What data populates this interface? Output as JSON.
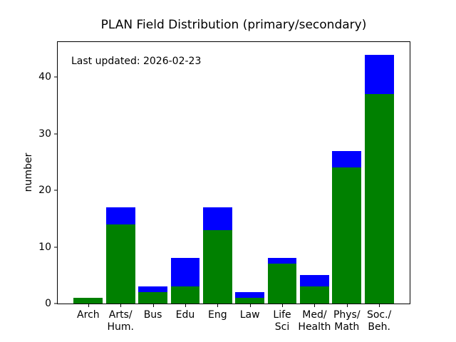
{
  "chart_data": {
    "type": "bar",
    "stacked": true,
    "title": "PLAN Field Distribution (primary/secondary)",
    "annotation": "Last updated: 2026-02-23",
    "xlabel": "",
    "ylabel": "number",
    "categories": [
      "Arch",
      "Arts/\nHum.",
      "Bus",
      "Edu",
      "Eng",
      "Law",
      "Life\nSci",
      "Med/\nHealth",
      "Phys/\nMath",
      "Soc./\nBeh."
    ],
    "series": [
      {
        "name": "primary",
        "color": "#008000",
        "values": [
          1,
          14,
          2,
          3,
          13,
          1,
          7,
          3,
          24,
          37
        ]
      },
      {
        "name": "secondary",
        "color": "#0000ff",
        "values": [
          0,
          3,
          1,
          5,
          4,
          1,
          1,
          2,
          3,
          7
        ]
      }
    ],
    "totals": [
      1,
      17,
      3,
      8,
      17,
      2,
      8,
      5,
      27,
      44
    ],
    "ylim": [
      0,
      46.2
    ],
    "yticks": [
      0,
      10,
      20,
      30,
      40
    ],
    "bar_width": 0.9,
    "x_pad": 0.945,
    "x_span": 10.89,
    "legend": "none",
    "grid": false,
    "background": "#ffffff"
  }
}
